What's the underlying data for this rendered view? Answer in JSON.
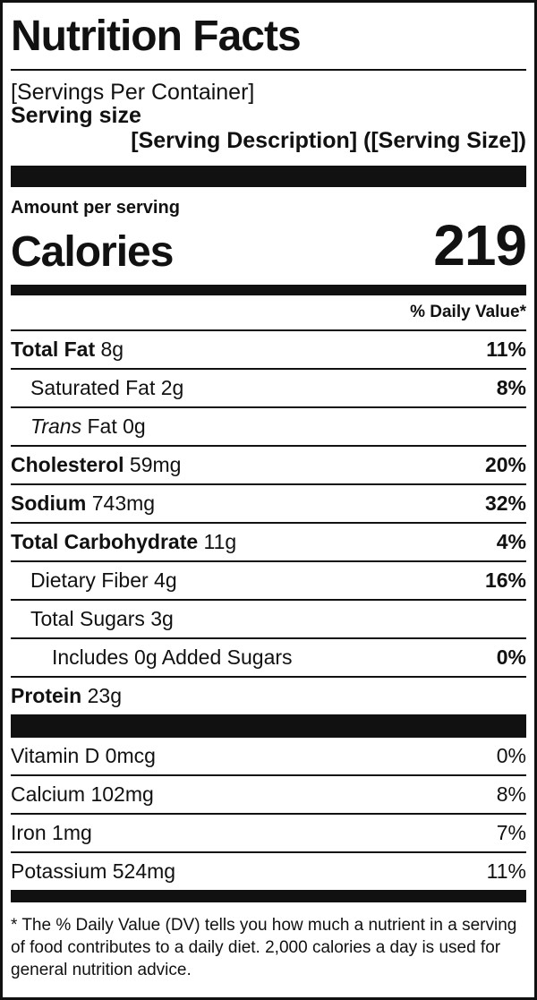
{
  "title": "Nutrition Facts",
  "servings_per_container": "[Servings Per Container]",
  "serving_size_label": "Serving size",
  "serving_size_value": "[Serving Description] ([Serving Size])",
  "amount_per_serving": "Amount per serving",
  "calories_label": "Calories",
  "calories_value": "219",
  "daily_value_header": "% Daily Value*",
  "nutrients": {
    "total_fat": {
      "name": "Total Fat",
      "amount": "8g",
      "dv": "11%"
    },
    "saturated_fat": {
      "name": "Saturated Fat",
      "amount": "2g",
      "dv": "8%"
    },
    "trans_fat": {
      "name": "Trans",
      "suffix": "Fat",
      "amount": "0g"
    },
    "cholesterol": {
      "name": "Cholesterol",
      "amount": "59mg",
      "dv": "20%"
    },
    "sodium": {
      "name": "Sodium",
      "amount": "743mg",
      "dv": "32%"
    },
    "total_carbohydrate": {
      "name": "Total Carbohydrate",
      "amount": "11g",
      "dv": "4%"
    },
    "dietary_fiber": {
      "name": "Dietary Fiber",
      "amount": "4g",
      "dv": "16%"
    },
    "total_sugars": {
      "name": "Total Sugars",
      "amount": "3g"
    },
    "added_sugars": {
      "text": "Includes 0g Added Sugars",
      "dv": "0%"
    },
    "protein": {
      "name": "Protein",
      "amount": "23g"
    }
  },
  "vitamins": [
    {
      "label": "Vitamin D 0mcg",
      "dv": "0%"
    },
    {
      "label": "Calcium 102mg",
      "dv": "8%"
    },
    {
      "label": "Iron 1mg",
      "dv": "7%"
    },
    {
      "label": "Potassium 524mg",
      "dv": "11%"
    }
  ],
  "footnote": "* The % Daily Value (DV) tells you how much a nutrient in a serving of food contributes to a daily diet. 2,000 calories a day is used for general nutrition advice."
}
